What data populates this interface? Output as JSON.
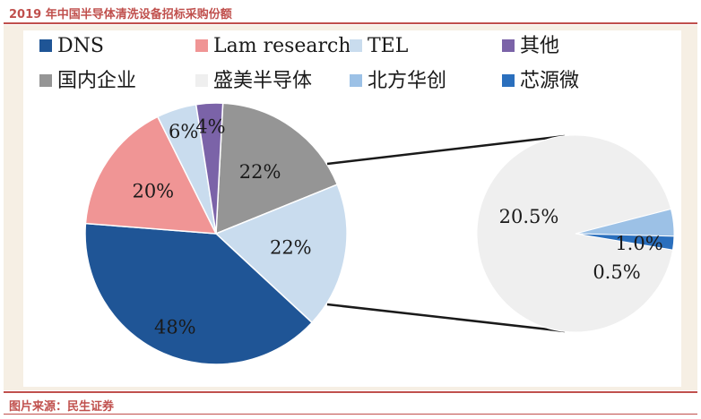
{
  "header": {
    "title": "2019 年中国半导体清洗设备招标采购份额"
  },
  "footer": {
    "source": "图片来源：民生证券"
  },
  "chart_data": [
    {
      "type": "pie",
      "legend_placement": "top",
      "slices": [
        {
          "name": "DNS",
          "value": 48,
          "label": "48%",
          "color": "#1f5596"
        },
        {
          "name": "Lam research",
          "value": 20,
          "label": "20%",
          "color": "#f09595"
        },
        {
          "name": "TEL",
          "value": 22,
          "label": "22%",
          "color": "#c9dcee"
        },
        {
          "name": "其他",
          "value": 4,
          "label": "4%",
          "color": "#7b63a8"
        },
        {
          "name": "国内企业",
          "value": 22,
          "label": "22%",
          "color": "#959595"
        }
      ],
      "legend": [
        {
          "name": "DNS",
          "color": "#1f5596"
        },
        {
          "name": "Lam research",
          "color": "#f09595"
        },
        {
          "name": "TEL",
          "color": "#c9dcee"
        },
        {
          "name": "其他",
          "color": "#7b63a8"
        },
        {
          "name": "国内企业",
          "color": "#959595"
        },
        {
          "name": "盛美半导体",
          "color": "#efefef"
        },
        {
          "name": "北方华创",
          "color": "#9cc1e6"
        },
        {
          "name": "芯源微",
          "color": "#2a6fbd"
        }
      ]
    },
    {
      "type": "pie",
      "breakdown_of": "国内企业",
      "slices": [
        {
          "name": "盛美半导体",
          "value": 20.5,
          "label": "20.5%",
          "color": "#efefef"
        },
        {
          "name": "北方华创",
          "value": 1.0,
          "label": "1.0%",
          "color": "#9cc1e6"
        },
        {
          "name": "芯源微",
          "value": 0.5,
          "label": "0.5%",
          "color": "#2a6fbd"
        }
      ]
    }
  ]
}
